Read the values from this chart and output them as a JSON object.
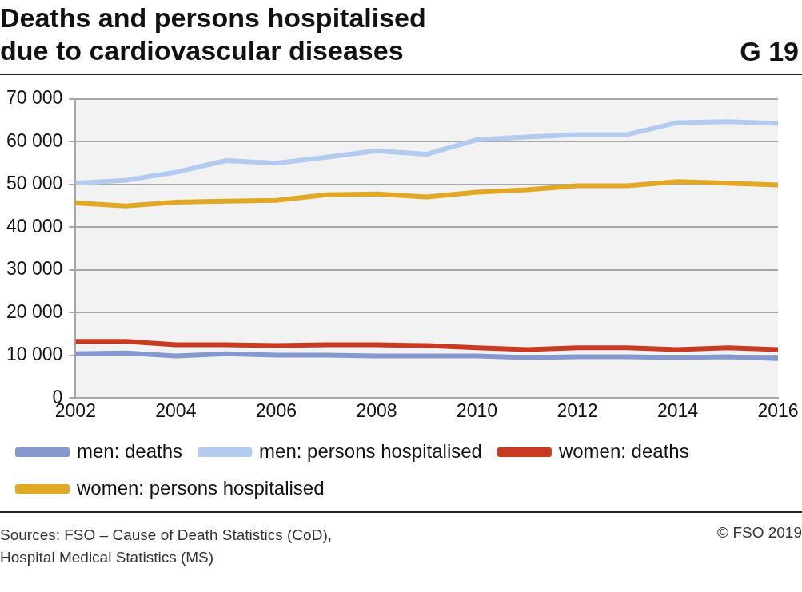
{
  "chart_data": {
    "type": "line",
    "title": "Deaths and persons hospitalised\ndue to cardiovascular diseases",
    "annotations": [
      "G 19",
      "Sources: FSO – Cause of Death Statistics (CoD),\nHospital Medical Statistics (MS)",
      "© FSO 2019"
    ],
    "x": [
      2002,
      2003,
      2004,
      2005,
      2006,
      2007,
      2008,
      2009,
      2010,
      2011,
      2012,
      2013,
      2014,
      2015,
      2016
    ],
    "series": [
      {
        "name": "men: deaths",
        "color": "#8599d0",
        "values": [
          10400,
          10600,
          9900,
          10400,
          10100,
          10100,
          9900,
          9900,
          9900,
          9500,
          9700,
          9700,
          9500,
          9700,
          9300
        ]
      },
      {
        "name": "men: persons hospitalised",
        "color": "#b3cbee",
        "values": [
          50300,
          51000,
          52900,
          55600,
          55000,
          56400,
          57900,
          57100,
          60500,
          61100,
          61700,
          61700,
          64500,
          64700,
          64300
        ]
      },
      {
        "name": "women: deaths",
        "color": "#c83b22",
        "values": [
          13300,
          13300,
          12500,
          12500,
          12300,
          12500,
          12500,
          12300,
          11800,
          11400,
          11800,
          11800,
          11400,
          11800,
          11400
        ]
      },
      {
        "name": "women: persons hospitalised",
        "color": "#e0a825",
        "values": [
          45700,
          45000,
          45900,
          46100,
          46300,
          47600,
          47800,
          47100,
          48200,
          48800,
          49700,
          49700,
          50700,
          50300,
          49900
        ]
      }
    ],
    "xlim": [
      2002,
      2016
    ],
    "xticks": [
      2002,
      2004,
      2006,
      2008,
      2010,
      2012,
      2014,
      2016
    ],
    "ylim": [
      0,
      70000
    ],
    "yticks": [
      0,
      {
        "value": 10000,
        "label": "10 000"
      },
      {
        "value": 20000,
        "label": "20 000"
      },
      {
        "value": 30000,
        "label": "30 000"
      },
      {
        "value": 40000,
        "label": "40 000"
      },
      {
        "value": 50000,
        "label": "50 000"
      },
      {
        "value": 60000,
        "label": "60 000"
      },
      {
        "value": 70000,
        "label": "70 000"
      }
    ],
    "grid": "y",
    "legend": "bottom",
    "marker": "none",
    "line_style": "solid"
  }
}
